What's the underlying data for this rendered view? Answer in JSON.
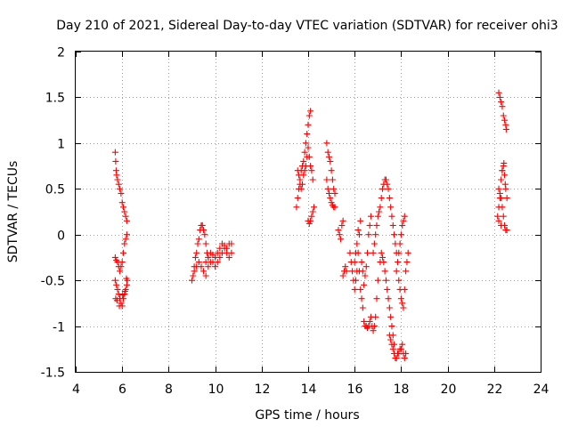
{
  "chart_data": {
    "type": "scatter",
    "title": "Day 210 of 2021, Sidereal Day-to-day VTEC variation (SDTVAR) for receiver ohi3",
    "xlabel": "GPS time / hours",
    "ylabel": "SDTVAR / TECUs",
    "xlim": [
      4,
      24
    ],
    "ylim": [
      -1.5,
      2
    ],
    "xticks": [
      4,
      6,
      8,
      10,
      12,
      14,
      16,
      18,
      20,
      22,
      24
    ],
    "yticks": [
      -1.5,
      -1,
      -0.5,
      0,
      0.5,
      1,
      1.5,
      2
    ],
    "xtick_labels": [
      "4",
      "6",
      "8",
      "10",
      "12",
      "14",
      "16",
      "18",
      "20",
      "22",
      "24"
    ],
    "ytick_labels": [
      "-1.5",
      "-1",
      "-0.5",
      "0",
      "0.5",
      "1",
      "1.5",
      "2"
    ],
    "grid": true,
    "marker": "+",
    "color": "#ff0000",
    "series": [
      {
        "name": "SDTVAR",
        "points": [
          [
            5.7,
            0.9
          ],
          [
            5.72,
            0.8
          ],
          [
            5.74,
            0.7
          ],
          [
            5.76,
            0.65
          ],
          [
            5.8,
            0.6
          ],
          [
            5.85,
            0.55
          ],
          [
            5.9,
            0.5
          ],
          [
            5.95,
            0.45
          ],
          [
            6.0,
            0.35
          ],
          [
            6.05,
            0.3
          ],
          [
            6.1,
            0.25
          ],
          [
            6.15,
            0.2
          ],
          [
            6.2,
            0.15
          ],
          [
            5.7,
            -0.25
          ],
          [
            5.75,
            -0.28
          ],
          [
            5.8,
            -0.3
          ],
          [
            5.85,
            -0.35
          ],
          [
            5.9,
            -0.4
          ],
          [
            5.95,
            -0.35
          ],
          [
            6.0,
            -0.3
          ],
          [
            6.05,
            -0.2
          ],
          [
            6.1,
            -0.1
          ],
          [
            6.15,
            -0.05
          ],
          [
            6.2,
            0.0
          ],
          [
            5.7,
            -0.5
          ],
          [
            5.75,
            -0.55
          ],
          [
            5.8,
            -0.6
          ],
          [
            5.85,
            -0.65
          ],
          [
            5.9,
            -0.7
          ],
          [
            5.95,
            -0.75
          ],
          [
            6.0,
            -0.78
          ],
          [
            6.05,
            -0.7
          ],
          [
            6.1,
            -0.65
          ],
          [
            6.15,
            -0.6
          ],
          [
            6.2,
            -0.55
          ],
          [
            6.22,
            -0.5
          ],
          [
            5.72,
            -0.7
          ],
          [
            5.78,
            -0.72
          ],
          [
            5.88,
            -0.78
          ],
          [
            6.02,
            -0.66
          ],
          [
            6.12,
            -0.62
          ],
          [
            6.18,
            -0.48
          ],
          [
            9.0,
            -0.5
          ],
          [
            9.05,
            -0.45
          ],
          [
            9.1,
            -0.35
          ],
          [
            9.15,
            -0.25
          ],
          [
            9.2,
            -0.2
          ],
          [
            9.25,
            -0.1
          ],
          [
            9.3,
            -0.05
          ],
          [
            9.35,
            0.05
          ],
          [
            9.4,
            0.1
          ],
          [
            9.45,
            0.1
          ],
          [
            9.5,
            0.05
          ],
          [
            9.55,
            0.0
          ],
          [
            9.6,
            -0.1
          ],
          [
            9.65,
            -0.2
          ],
          [
            9.7,
            -0.25
          ],
          [
            9.1,
            -0.4
          ],
          [
            9.2,
            -0.35
          ],
          [
            9.3,
            -0.3
          ],
          [
            9.4,
            -0.35
          ],
          [
            9.5,
            -0.4
          ],
          [
            9.6,
            -0.45
          ],
          [
            9.7,
            -0.35
          ],
          [
            9.8,
            -0.3
          ],
          [
            9.9,
            -0.3
          ],
          [
            10.0,
            -0.35
          ],
          [
            10.1,
            -0.3
          ],
          [
            10.2,
            -0.25
          ],
          [
            10.3,
            -0.2
          ],
          [
            10.4,
            -0.15
          ],
          [
            10.5,
            -0.15
          ],
          [
            10.6,
            -0.1
          ],
          [
            10.7,
            -0.1
          ],
          [
            9.6,
            -0.3
          ],
          [
            9.7,
            -0.25
          ],
          [
            9.8,
            -0.2
          ],
          [
            9.9,
            -0.22
          ],
          [
            10.0,
            -0.25
          ],
          [
            10.1,
            -0.2
          ],
          [
            10.2,
            -0.15
          ],
          [
            10.3,
            -0.1
          ],
          [
            10.4,
            -0.12
          ],
          [
            10.5,
            -0.2
          ],
          [
            10.6,
            -0.25
          ],
          [
            10.7,
            -0.2
          ],
          [
            13.5,
            0.3
          ],
          [
            13.55,
            0.4
          ],
          [
            13.6,
            0.5
          ],
          [
            13.65,
            0.6
          ],
          [
            13.7,
            0.7
          ],
          [
            13.75,
            0.75
          ],
          [
            13.8,
            0.8
          ],
          [
            13.85,
            0.9
          ],
          [
            13.9,
            1.0
          ],
          [
            13.95,
            1.1
          ],
          [
            14.0,
            1.2
          ],
          [
            14.05,
            1.3
          ],
          [
            14.1,
            1.35
          ],
          [
            13.55,
            0.7
          ],
          [
            13.6,
            0.65
          ],
          [
            13.65,
            0.55
          ],
          [
            13.7,
            0.5
          ],
          [
            13.75,
            0.55
          ],
          [
            13.8,
            0.65
          ],
          [
            13.85,
            0.7
          ],
          [
            13.9,
            0.75
          ],
          [
            13.95,
            0.85
          ],
          [
            14.0,
            0.95
          ],
          [
            14.05,
            0.85
          ],
          [
            14.1,
            0.75
          ],
          [
            14.15,
            0.7
          ],
          [
            14.2,
            0.6
          ],
          [
            14.0,
            0.15
          ],
          [
            14.05,
            0.12
          ],
          [
            14.1,
            0.15
          ],
          [
            14.15,
            0.2
          ],
          [
            14.2,
            0.25
          ],
          [
            14.25,
            0.3
          ],
          [
            14.8,
            1.0
          ],
          [
            14.85,
            0.9
          ],
          [
            14.9,
            0.85
          ],
          [
            14.95,
            0.8
          ],
          [
            15.0,
            0.7
          ],
          [
            15.05,
            0.6
          ],
          [
            15.1,
            0.5
          ],
          [
            15.15,
            0.45
          ],
          [
            14.8,
            0.6
          ],
          [
            14.85,
            0.5
          ],
          [
            14.9,
            0.45
          ],
          [
            14.95,
            0.4
          ],
          [
            15.0,
            0.35
          ],
          [
            15.05,
            0.32
          ],
          [
            15.1,
            0.3
          ],
          [
            15.15,
            0.3
          ],
          [
            15.3,
            0.05
          ],
          [
            15.35,
            0.0
          ],
          [
            15.4,
            -0.05
          ],
          [
            15.45,
            0.1
          ],
          [
            15.5,
            0.15
          ],
          [
            15.5,
            -0.45
          ],
          [
            15.55,
            -0.4
          ],
          [
            15.6,
            -0.35
          ],
          [
            15.65,
            -0.4
          ],
          [
            15.8,
            -0.2
          ],
          [
            15.85,
            -0.3
          ],
          [
            15.9,
            -0.4
          ],
          [
            15.95,
            -0.5
          ],
          [
            16.0,
            -0.6
          ],
          [
            16.05,
            -0.5
          ],
          [
            16.1,
            -0.4
          ],
          [
            16.15,
            -0.2
          ],
          [
            16.2,
            0.0
          ],
          [
            16.25,
            0.15
          ],
          [
            16.0,
            -0.3
          ],
          [
            16.05,
            -0.2
          ],
          [
            16.1,
            -0.1
          ],
          [
            16.15,
            0.05
          ],
          [
            16.2,
            -0.4
          ],
          [
            16.25,
            -0.6
          ],
          [
            16.3,
            -0.7
          ],
          [
            16.35,
            -0.8
          ],
          [
            16.4,
            -0.95
          ],
          [
            16.45,
            -1.0
          ],
          [
            16.3,
            -0.3
          ],
          [
            16.35,
            -0.4
          ],
          [
            16.4,
            -0.55
          ],
          [
            16.45,
            -0.45
          ],
          [
            16.5,
            -0.35
          ],
          [
            16.55,
            -0.2
          ],
          [
            16.6,
            0.0
          ],
          [
            16.65,
            0.1
          ],
          [
            16.7,
            0.2
          ],
          [
            16.5,
            -1.0
          ],
          [
            16.55,
            -1.02
          ],
          [
            16.6,
            -1.0
          ],
          [
            16.65,
            -0.95
          ],
          [
            16.7,
            -0.9
          ],
          [
            16.75,
            -1.0
          ],
          [
            16.8,
            -1.05
          ],
          [
            16.85,
            -1.0
          ],
          [
            16.9,
            -0.9
          ],
          [
            16.95,
            -0.7
          ],
          [
            17.0,
            -0.5
          ],
          [
            16.8,
            -0.2
          ],
          [
            16.85,
            -0.1
          ],
          [
            16.9,
            0.0
          ],
          [
            16.95,
            0.1
          ],
          [
            17.0,
            0.2
          ],
          [
            17.05,
            0.25
          ],
          [
            17.1,
            0.3
          ],
          [
            17.15,
            0.4
          ],
          [
            17.2,
            0.5
          ],
          [
            17.25,
            0.55
          ],
          [
            17.3,
            0.6
          ],
          [
            17.35,
            0.6
          ],
          [
            17.4,
            0.55
          ],
          [
            17.45,
            0.5
          ],
          [
            17.5,
            0.4
          ],
          [
            17.55,
            0.3
          ],
          [
            17.6,
            0.2
          ],
          [
            17.65,
            0.1
          ],
          [
            17.7,
            0.0
          ],
          [
            17.75,
            -0.1
          ],
          [
            17.8,
            -0.2
          ],
          [
            17.1,
            -0.3
          ],
          [
            17.15,
            -0.2
          ],
          [
            17.2,
            -0.25
          ],
          [
            17.25,
            -0.3
          ],
          [
            17.3,
            -0.4
          ],
          [
            17.35,
            -0.5
          ],
          [
            17.4,
            -0.6
          ],
          [
            17.45,
            -0.7
          ],
          [
            17.5,
            -0.8
          ],
          [
            17.55,
            -0.9
          ],
          [
            17.6,
            -1.0
          ],
          [
            17.65,
            -1.1
          ],
          [
            17.7,
            -1.2
          ],
          [
            17.5,
            -1.1
          ],
          [
            17.55,
            -1.15
          ],
          [
            17.6,
            -1.2
          ],
          [
            17.65,
            -1.25
          ],
          [
            17.7,
            -1.3
          ],
          [
            17.75,
            -1.35
          ],
          [
            17.8,
            -1.35
          ],
          [
            17.85,
            -1.3
          ],
          [
            17.9,
            -1.3
          ],
          [
            17.95,
            -1.25
          ],
          [
            18.0,
            -1.25
          ],
          [
            18.05,
            -1.2
          ],
          [
            18.1,
            -1.3
          ],
          [
            18.15,
            -1.35
          ],
          [
            18.2,
            -1.3
          ],
          [
            17.8,
            -0.4
          ],
          [
            17.85,
            -0.3
          ],
          [
            17.9,
            -0.2
          ],
          [
            17.95,
            -0.1
          ],
          [
            18.0,
            0.0
          ],
          [
            18.05,
            0.1
          ],
          [
            18.1,
            0.15
          ],
          [
            18.15,
            0.2
          ],
          [
            17.9,
            -0.5
          ],
          [
            17.95,
            -0.6
          ],
          [
            18.0,
            -0.7
          ],
          [
            18.05,
            -0.75
          ],
          [
            18.1,
            -0.8
          ],
          [
            18.15,
            -0.6
          ],
          [
            18.2,
            -0.4
          ],
          [
            18.25,
            -0.3
          ],
          [
            18.3,
            -0.2
          ],
          [
            22.15,
            0.2
          ],
          [
            22.2,
            0.3
          ],
          [
            22.25,
            0.4
          ],
          [
            22.3,
            0.6
          ],
          [
            22.35,
            0.7
          ],
          [
            22.4,
            0.75
          ],
          [
            22.45,
            0.65
          ],
          [
            22.5,
            0.5
          ],
          [
            22.55,
            0.4
          ],
          [
            22.2,
            1.55
          ],
          [
            22.25,
            1.5
          ],
          [
            22.3,
            1.45
          ],
          [
            22.35,
            1.4
          ],
          [
            22.4,
            1.3
          ],
          [
            22.45,
            1.25
          ],
          [
            22.5,
            1.2
          ],
          [
            22.2,
            0.5
          ],
          [
            22.25,
            0.45
          ],
          [
            22.3,
            0.4
          ],
          [
            22.35,
            0.3
          ],
          [
            22.4,
            0.2
          ],
          [
            22.45,
            0.1
          ],
          [
            22.5,
            0.05
          ],
          [
            22.55,
            0.05
          ],
          [
            22.2,
            0.15
          ],
          [
            22.3,
            0.1
          ],
          [
            22.35,
            0.7
          ],
          [
            22.42,
            0.78
          ],
          [
            22.48,
            0.55
          ],
          [
            22.52,
            1.15
          ]
        ]
      }
    ]
  }
}
